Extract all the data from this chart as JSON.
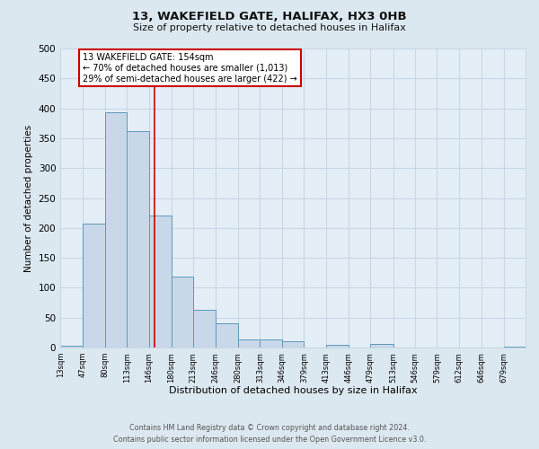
{
  "title_line1": "13, WAKEFIELD GATE, HALIFAX, HX3 0HB",
  "title_line2": "Size of property relative to detached houses in Halifax",
  "xlabel": "Distribution of detached houses by size in Halifax",
  "ylabel": "Number of detached properties",
  "bin_labels": [
    "13sqm",
    "47sqm",
    "80sqm",
    "113sqm",
    "146sqm",
    "180sqm",
    "213sqm",
    "246sqm",
    "280sqm",
    "313sqm",
    "346sqm",
    "379sqm",
    "413sqm",
    "446sqm",
    "479sqm",
    "513sqm",
    "546sqm",
    "579sqm",
    "612sqm",
    "646sqm",
    "679sqm"
  ],
  "bin_edges": [
    13,
    47,
    80,
    113,
    146,
    180,
    213,
    246,
    280,
    313,
    346,
    379,
    413,
    446,
    479,
    513,
    546,
    579,
    612,
    646,
    679,
    712
  ],
  "bar_heights": [
    3,
    207,
    393,
    362,
    221,
    118,
    63,
    40,
    14,
    13,
    10,
    0,
    5,
    0,
    6,
    0,
    0,
    0,
    0,
    0,
    2
  ],
  "bar_facecolor": "#c8d8e8",
  "bar_edgecolor": "#5f99bb",
  "vline_x": 154,
  "vline_color": "#cc0000",
  "annotation_text": "13 WAKEFIELD GATE: 154sqm\n← 70% of detached houses are smaller (1,013)\n29% of semi-detached houses are larger (422) →",
  "annotation_box_edgecolor": "#cc0000",
  "annotation_box_facecolor": "#ffffff",
  "ylim": [
    0,
    500
  ],
  "yticks": [
    0,
    50,
    100,
    150,
    200,
    250,
    300,
    350,
    400,
    450,
    500
  ],
  "grid_color": "#c8d8e4",
  "background_color": "#dce8f0",
  "plot_bg_color": "#e4eef6",
  "footer_line1": "Contains HM Land Registry data © Crown copyright and database right 2024.",
  "footer_line2": "Contains public sector information licensed under the Open Government Licence v3.0."
}
